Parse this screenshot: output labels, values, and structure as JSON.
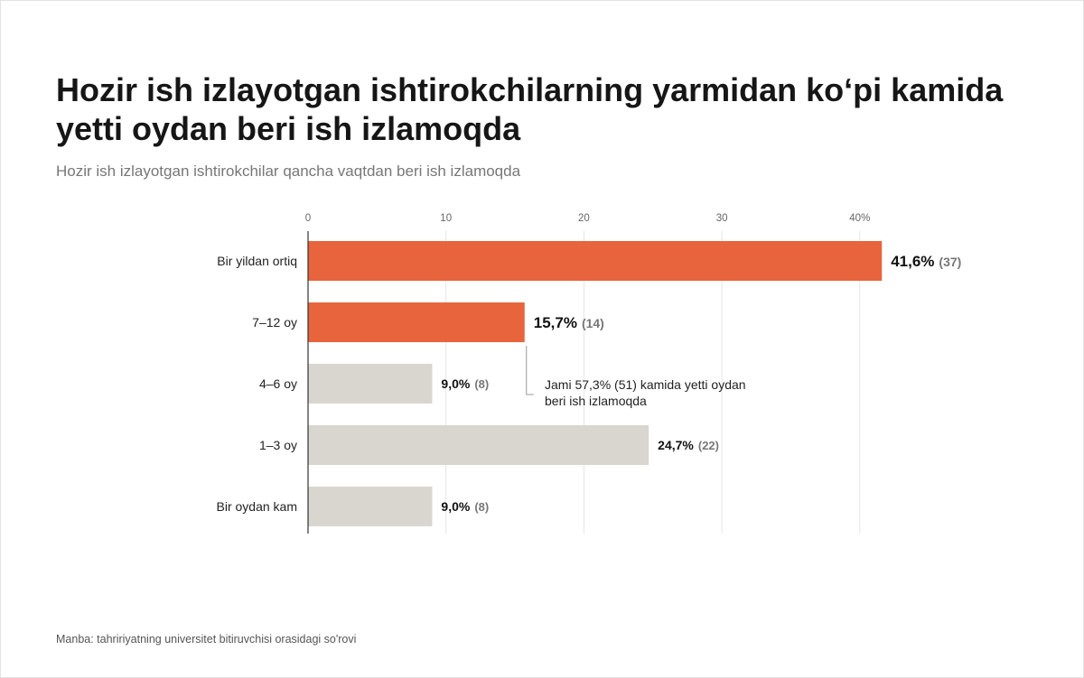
{
  "title": "Hozir ish izlayotgan ishtirokchilarning yarmidan koʻpi kamida yetti oydan beri ish izlamoqda",
  "subtitle": "Hozir ish izlayotgan ishtirokchilar qancha vaqtdan beri ish izlamoqda",
  "source": "Manba: tahririyatning universitet bitiruvchisi orasidagi so'rovi",
  "colors": {
    "highlight": "#e8643c",
    "muted": "#d9d6d0",
    "grid": "#e6e6e6",
    "axis": "#333333"
  },
  "chart_data": {
    "type": "bar",
    "orientation": "horizontal",
    "categories": [
      "Bir yildan ortiq",
      "7–12 oy",
      "4–6 oy",
      "1–3 oy",
      "Bir oydan kam"
    ],
    "values": [
      41.6,
      15.7,
      9.0,
      24.7,
      9.0
    ],
    "counts": [
      37,
      14,
      8,
      22,
      8
    ],
    "value_labels": [
      "41,6%",
      "15,7%",
      "9,0%",
      "24,7%",
      "9,0%"
    ],
    "count_labels": [
      "(37)",
      "(14)",
      "(8)",
      "(22)",
      "(8)"
    ],
    "highlighted": [
      true,
      true,
      false,
      false,
      false
    ],
    "xlim": [
      0,
      45
    ],
    "xticks": [
      0,
      10,
      20,
      30,
      40
    ],
    "xtick_labels": [
      "0",
      "10",
      "20",
      "30",
      "40%"
    ],
    "grid": true,
    "annotation": {
      "lines": [
        "Jami 57,3% (51) kamida yetti oydan",
        "beri ish izlamoqda"
      ]
    }
  }
}
